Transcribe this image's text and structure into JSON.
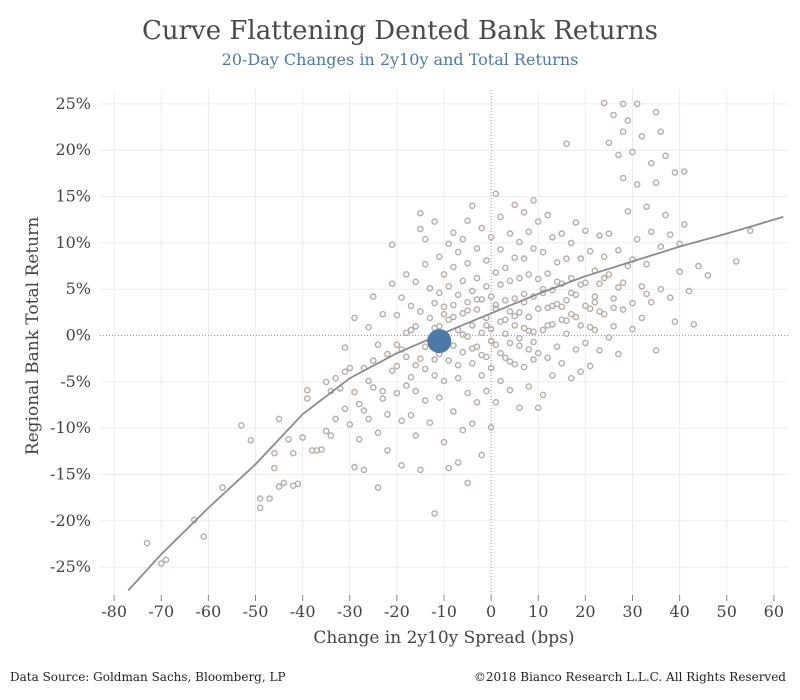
{
  "chart_data": {
    "type": "scatter",
    "title": "Curve Flattening Dented Bank Returns",
    "subtitle": "20-Day Changes in 2y10y and Total Returns",
    "xlabel": "Change in 2y10y Spread (bps)",
    "ylabel": "Regional  Bank Total Return",
    "xlim": [
      -83,
      63
    ],
    "ylim": [
      -28,
      26.5
    ],
    "x_ticks": [
      -80,
      -70,
      -60,
      -50,
      -40,
      -30,
      -20,
      -10,
      0,
      10,
      20,
      30,
      40,
      50,
      60
    ],
    "y_ticks": [
      25,
      20,
      15,
      10,
      5,
      0,
      -5,
      -10,
      -15,
      -20,
      -25
    ],
    "y_tick_labels": [
      "25%",
      "20%",
      "15%",
      "10%",
      "5%",
      "0%",
      "-5%",
      "-10%",
      "-15%",
      "-20%",
      "-25%"
    ],
    "grid": true,
    "zero_reference_lines": true,
    "point_color": "#b7aca6",
    "highlight_color": "#4e79a7",
    "fit_color": "#8c8c8c",
    "highlight_point": {
      "x": -11,
      "y": -0.6
    },
    "fit_curve": [
      [
        -77,
        -27.5
      ],
      [
        -70,
        -23.6
      ],
      [
        -60,
        -18.6
      ],
      [
        -50,
        -13.9
      ],
      [
        -40,
        -8.5
      ],
      [
        -30,
        -4.6
      ],
      [
        -20,
        -1.9
      ],
      [
        -10,
        0.3
      ],
      [
        0,
        2.4
      ],
      [
        10,
        4.5
      ],
      [
        20,
        6.4
      ],
      [
        30,
        8.0
      ],
      [
        40,
        9.6
      ],
      [
        50,
        11.0
      ],
      [
        62,
        12.8
      ]
    ],
    "points": [
      [
        -73,
        -22.4
      ],
      [
        -70,
        -24.6
      ],
      [
        -69,
        -24.2
      ],
      [
        -63,
        -19.9
      ],
      [
        -61,
        -21.7
      ],
      [
        -57,
        -16.4
      ],
      [
        -53,
        -9.7
      ],
      [
        -51,
        -11.3
      ],
      [
        -49,
        -18.6
      ],
      [
        -49,
        -17.6
      ],
      [
        -47,
        -17.6
      ],
      [
        -46,
        -14.3
      ],
      [
        -46,
        -12.7
      ],
      [
        -45,
        -9.0
      ],
      [
        -45,
        -16.3
      ],
      [
        -44,
        -15.9
      ],
      [
        -43,
        -11.2
      ],
      [
        -42,
        -12.7
      ],
      [
        -42,
        -16.2
      ],
      [
        -41,
        -16.0
      ],
      [
        -40,
        -11.0
      ],
      [
        -39,
        -5.9
      ],
      [
        -39,
        -6.8
      ],
      [
        -38,
        -12.4
      ],
      [
        -37,
        -12.4
      ],
      [
        -36,
        -12.3
      ],
      [
        -35,
        -10.3
      ],
      [
        -35,
        -5.0
      ],
      [
        -34,
        -6.0
      ],
      [
        -34,
        -10.8
      ],
      [
        -33,
        -9.0
      ],
      [
        -33,
        -4.6
      ],
      [
        -32,
        -5.7
      ],
      [
        -31,
        -1.3
      ],
      [
        -31,
        -7.9
      ],
      [
        -30,
        -9.6
      ],
      [
        -30,
        -3.5
      ],
      [
        -29,
        1.9
      ],
      [
        -29,
        -14.2
      ],
      [
        -28,
        -7.4
      ],
      [
        -28,
        -11.2
      ],
      [
        -27,
        -3.5
      ],
      [
        -27,
        -14.5
      ],
      [
        -26,
        -9.0
      ],
      [
        -26,
        0.9
      ],
      [
        -25,
        -5.6
      ],
      [
        -25,
        4.2
      ],
      [
        -24,
        -16.4
      ],
      [
        -24,
        -10.5
      ],
      [
        -24,
        -1.0
      ],
      [
        -23,
        -6.0
      ],
      [
        -23,
        2.3
      ],
      [
        -22,
        -8.5
      ],
      [
        -22,
        -12.4
      ],
      [
        -21,
        9.8
      ],
      [
        -21,
        5.6
      ],
      [
        -21,
        -3.8
      ],
      [
        -20,
        -1.0
      ],
      [
        -20,
        -6.2
      ],
      [
        -20,
        2.2
      ],
      [
        -19,
        -14.0
      ],
      [
        -19,
        4.1
      ],
      [
        -19,
        -9.2
      ],
      [
        -18,
        0.3
      ],
      [
        -18,
        -2.3
      ],
      [
        -18,
        6.6
      ],
      [
        -17,
        -8.6
      ],
      [
        -17,
        -4.5
      ],
      [
        -17,
        3.2
      ],
      [
        -16,
        -10.8
      ],
      [
        -16,
        -6.0
      ],
      [
        -16,
        1.0
      ],
      [
        -16,
        5.8
      ],
      [
        -15,
        13.2
      ],
      [
        -15,
        11.5
      ],
      [
        -15,
        -14.5
      ],
      [
        -15,
        -2.5
      ],
      [
        -15,
        2.6
      ],
      [
        -14,
        10.4
      ],
      [
        -14,
        -3.6
      ],
      [
        -14,
        -7.0
      ],
      [
        -14,
        7.7
      ],
      [
        -13,
        5.1
      ],
      [
        -13,
        -0.5
      ],
      [
        -13,
        -9.4
      ],
      [
        -12,
        -19.2
      ],
      [
        -12,
        12.3
      ],
      [
        -12,
        3.5
      ],
      [
        -12,
        -4.3
      ],
      [
        -12,
        0.8
      ],
      [
        -11,
        8.5
      ],
      [
        -11,
        -6.7
      ],
      [
        -11,
        -2.0
      ],
      [
        -11,
        4.6
      ],
      [
        -10,
        -11.5
      ],
      [
        -10,
        6.6
      ],
      [
        -10,
        -0.2
      ],
      [
        -10,
        -4.9
      ],
      [
        -10,
        2.3
      ],
      [
        -9,
        -14.3
      ],
      [
        -9,
        9.9
      ],
      [
        -9,
        1.7
      ],
      [
        -9,
        -2.7
      ],
      [
        -9,
        5.3
      ],
      [
        -8,
        11.1
      ],
      [
        -8,
        -8.2
      ],
      [
        -8,
        3.3
      ],
      [
        -8,
        -1.1
      ],
      [
        -8,
        7.4
      ],
      [
        -7,
        -13.7
      ],
      [
        -7,
        0.6
      ],
      [
        -7,
        -4.6
      ],
      [
        -7,
        4.4
      ],
      [
        -7,
        9.0
      ],
      [
        -6,
        10.4
      ],
      [
        -6,
        -10.2
      ],
      [
        -6,
        2.4
      ],
      [
        -6,
        -1.8
      ],
      [
        -6,
        5.9
      ],
      [
        -5,
        -15.9
      ],
      [
        -5,
        12.4
      ],
      [
        -5,
        -6.2
      ],
      [
        -5,
        3.6
      ],
      [
        -5,
        -0.1
      ],
      [
        -5,
        7.8
      ],
      [
        -4,
        14.0
      ],
      [
        -4,
        -9.5
      ],
      [
        -4,
        1.1
      ],
      [
        -4,
        -3.0
      ],
      [
        -4,
        4.8
      ],
      [
        -3,
        9.4
      ],
      [
        -3,
        -7.2
      ],
      [
        -3,
        2.8
      ],
      [
        -3,
        -1.2
      ],
      [
        -3,
        6.2
      ],
      [
        -2,
        -12.9
      ],
      [
        -2,
        11.6
      ],
      [
        -2,
        0.3
      ],
      [
        -2,
        -4.3
      ],
      [
        -2,
        3.9
      ],
      [
        -1,
        8.1
      ],
      [
        -1,
        -6.0
      ],
      [
        -1,
        1.9
      ],
      [
        -1,
        -2.3
      ],
      [
        -1,
        5.3
      ],
      [
        0,
        -9.9
      ],
      [
        0,
        10.6
      ],
      [
        0,
        0.7
      ],
      [
        0,
        -3.5
      ],
      [
        0,
        4.2
      ],
      [
        1,
        15.3
      ],
      [
        1,
        -7.2
      ],
      [
        1,
        2.9
      ],
      [
        1,
        -1.0
      ],
      [
        1,
        6.8
      ],
      [
        2,
        12.8
      ],
      [
        2,
        -4.9
      ],
      [
        2,
        1.5
      ],
      [
        2,
        5.5
      ],
      [
        2,
        9.3
      ],
      [
        3,
        -2.4
      ],
      [
        3,
        3.8
      ],
      [
        3,
        0.2
      ],
      [
        3,
        7.3
      ],
      [
        4,
        11.0
      ],
      [
        4,
        -5.9
      ],
      [
        4,
        2.6
      ],
      [
        4,
        -0.8
      ],
      [
        4,
        5.9
      ],
      [
        5,
        14.1
      ],
      [
        5,
        -3.1
      ],
      [
        5,
        4.0
      ],
      [
        5,
        1.1
      ],
      [
        5,
        8.4
      ],
      [
        6,
        -7.8
      ],
      [
        6,
        10.1
      ],
      [
        6,
        2.5
      ],
      [
        6,
        -0.3
      ],
      [
        6,
        6.2
      ],
      [
        7,
        13.3
      ],
      [
        7,
        -3.4
      ],
      [
        7,
        4.5
      ],
      [
        7,
        0.8
      ],
      [
        7,
        8.3
      ],
      [
        8,
        -5.5
      ],
      [
        8,
        11.2
      ],
      [
        8,
        2.0
      ],
      [
        8,
        -1.5
      ],
      [
        8,
        6.6
      ],
      [
        9,
        14.6
      ],
      [
        9,
        -2.6
      ],
      [
        9,
        4.2
      ],
      [
        9,
        0.4
      ],
      [
        9,
        9.4
      ],
      [
        10,
        -7.8
      ],
      [
        10,
        12.3
      ],
      [
        10,
        2.9
      ],
      [
        10,
        -1.9
      ],
      [
        10,
        6.1
      ],
      [
        11,
        -6.4
      ],
      [
        11,
        4.6
      ],
      [
        11,
        0.6
      ],
      [
        11,
        9.0
      ],
      [
        12,
        13.0
      ],
      [
        12,
        -2.4
      ],
      [
        12,
        3.0
      ],
      [
        12,
        6.7
      ],
      [
        13,
        10.6
      ],
      [
        13,
        -4.3
      ],
      [
        13,
        1.2
      ],
      [
        13,
        4.9
      ],
      [
        14,
        -1.2
      ],
      [
        14,
        7.9
      ],
      [
        14,
        3.4
      ],
      [
        15,
        11.0
      ],
      [
        15,
        -3.0
      ],
      [
        15,
        1.7
      ],
      [
        15,
        5.6
      ],
      [
        16,
        20.7
      ],
      [
        16,
        8.3
      ],
      [
        16,
        0.2
      ],
      [
        16,
        3.8
      ],
      [
        17,
        -4.6
      ],
      [
        17,
        10.0
      ],
      [
        17,
        2.3
      ],
      [
        17,
        6.2
      ],
      [
        18,
        12.2
      ],
      [
        18,
        -1.5
      ],
      [
        18,
        4.4
      ],
      [
        19,
        8.3
      ],
      [
        19,
        -3.9
      ],
      [
        19,
        1.1
      ],
      [
        20,
        5.7
      ],
      [
        20,
        11.3
      ],
      [
        20,
        -0.8
      ],
      [
        21,
        2.9
      ],
      [
        21,
        9.1
      ],
      [
        21,
        -3.3
      ],
      [
        22,
        7.0
      ],
      [
        22,
        0.6
      ],
      [
        22,
        4.2
      ],
      [
        23,
        10.8
      ],
      [
        23,
        -1.6
      ],
      [
        23,
        5.6
      ],
      [
        24,
        25.1
      ],
      [
        24,
        8.5
      ],
      [
        24,
        2.3
      ],
      [
        25,
        20.8
      ],
      [
        25,
        -0.2
      ],
      [
        25,
        6.6
      ],
      [
        25,
        11.0
      ],
      [
        26,
        23.8
      ],
      [
        26,
        4.0
      ],
      [
        26,
        1.0
      ],
      [
        27,
        19.5
      ],
      [
        27,
        9.2
      ],
      [
        27,
        5.2
      ],
      [
        27,
        -2.0
      ],
      [
        28,
        25.0
      ],
      [
        28,
        22.0
      ],
      [
        28,
        17.0
      ],
      [
        28,
        2.8
      ],
      [
        29,
        23.2
      ],
      [
        29,
        13.4
      ],
      [
        29,
        7.5
      ],
      [
        30,
        19.8
      ],
      [
        30,
        3.5
      ],
      [
        30,
        0.7
      ],
      [
        31,
        25.0
      ],
      [
        31,
        16.3
      ],
      [
        31,
        10.4
      ],
      [
        32,
        21.5
      ],
      [
        32,
        5.3
      ],
      [
        32,
        1.9
      ],
      [
        33,
        13.9
      ],
      [
        33,
        7.7
      ],
      [
        34,
        18.6
      ],
      [
        34,
        3.6
      ],
      [
        34,
        11.2
      ],
      [
        35,
        24.1
      ],
      [
        35,
        16.5
      ],
      [
        35,
        -1.6
      ],
      [
        36,
        22.0
      ],
      [
        36,
        9.6
      ],
      [
        36,
        5.0
      ],
      [
        37,
        19.4
      ],
      [
        37,
        13.0
      ],
      [
        38,
        10.9
      ],
      [
        38,
        4.1
      ],
      [
        39,
        17.6
      ],
      [
        39,
        1.5
      ],
      [
        40,
        9.9
      ],
      [
        40,
        6.9
      ],
      [
        41,
        17.7
      ],
      [
        41,
        12.0
      ],
      [
        42,
        4.8
      ],
      [
        43,
        1.2
      ],
      [
        44,
        7.5
      ],
      [
        46,
        6.5
      ],
      [
        52,
        8.0
      ],
      [
        55,
        11.3
      ],
      [
        -10,
        3.1
      ],
      [
        -9,
        -0.9
      ],
      [
        -8,
        2.0
      ],
      [
        -7,
        -3.2
      ],
      [
        -6,
        0.1
      ],
      [
        -5,
        2.7
      ],
      [
        -4,
        -1.4
      ],
      [
        -3,
        3.9
      ],
      [
        -2,
        -2.1
      ],
      [
        -1,
        1.1
      ],
      [
        0,
        -0.6
      ],
      [
        1,
        3.3
      ],
      [
        2,
        -1.9
      ],
      [
        3,
        1.7
      ],
      [
        4,
        -2.8
      ],
      [
        5,
        2.1
      ],
      [
        6,
        -1.1
      ],
      [
        7,
        3.6
      ],
      [
        8,
        0.5
      ],
      [
        9,
        -0.7
      ],
      [
        -13,
        1.9
      ],
      [
        -14,
        -1.2
      ],
      [
        -12,
        -2.6
      ],
      [
        -11,
        1.0
      ],
      [
        -16,
        -3.2
      ],
      [
        -17,
        0.6
      ],
      [
        -18,
        -5.4
      ],
      [
        -19,
        -1.5
      ],
      [
        -20,
        -3.3
      ],
      [
        -22,
        -2.0
      ],
      [
        -23,
        -6.8
      ],
      [
        -25,
        -2.7
      ],
      [
        -26,
        -4.9
      ],
      [
        -27,
        -8.1
      ],
      [
        -29,
        -6.1
      ],
      [
        -31,
        -3.9
      ],
      [
        11,
        5.0
      ],
      [
        12,
        1.1
      ],
      [
        13,
        3.2
      ],
      [
        14,
        5.8
      ],
      [
        15,
        3.1
      ],
      [
        16,
        1.6
      ],
      [
        17,
        4.6
      ],
      [
        18,
        2.0
      ],
      [
        19,
        5.5
      ],
      [
        20,
        3.2
      ],
      [
        21,
        0.9
      ],
      [
        22,
        3.6
      ],
      [
        23,
        2.6
      ],
      [
        24,
        6.2
      ],
      [
        26,
        3.0
      ],
      [
        28,
        5.7
      ],
      [
        30,
        8.2
      ],
      [
        33,
        4.5
      ]
    ]
  },
  "footer": {
    "source": "Data Source: Goldman Sachs, Bloomberg, LP",
    "copyright": "©2018 Bianco Research L.L.C. All Rights Reserved"
  }
}
